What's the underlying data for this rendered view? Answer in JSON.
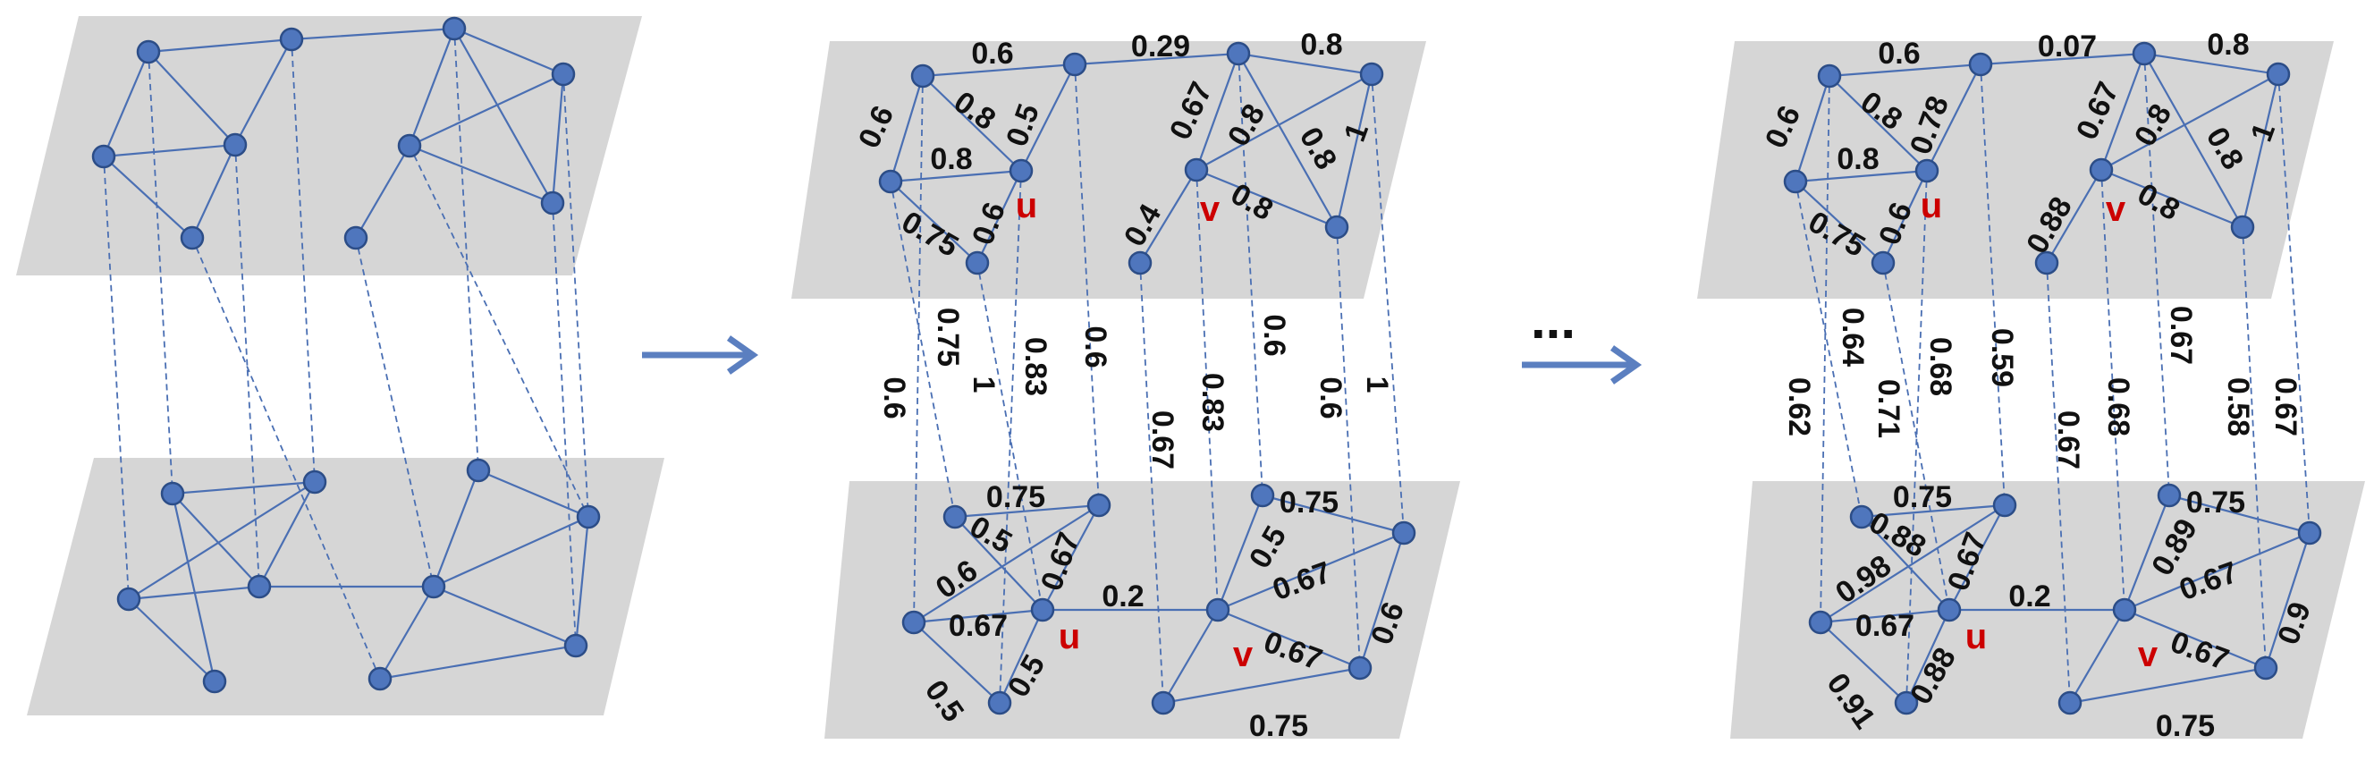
{
  "colors": {
    "plane": "#d6d6d6",
    "edge": "#4a6fb3",
    "node_fill": "#4f76bd",
    "node_stroke": "#2c4d87",
    "weight_text": "#111111",
    "vertex_label": "#cc0000",
    "arrow": "#5b7fc0"
  },
  "vertex_labels": {
    "u": "u",
    "v": "v"
  },
  "ellipsis": "...",
  "panel2": {
    "top_weights": [
      "0.6",
      "0.29",
      "0.8",
      "0.6",
      "0.8",
      "0.5",
      "0.67",
      "0.8",
      "0.8",
      "1",
      "0.8",
      "0.75",
      "0.6",
      "0.4",
      "0.8"
    ],
    "inter_weights": [
      "0.6",
      "0.75",
      "1",
      "0.83",
      "0.6",
      "0.67",
      "0.83",
      "0.6",
      "0.6",
      "1"
    ],
    "bottom_weights": [
      "0.75",
      "0.5",
      "0.67",
      "0.6",
      "0.67",
      "0.2",
      "0.5",
      "0.67",
      "0.75",
      "0.5",
      "0.5",
      "0.67",
      "0.6",
      "0.75"
    ]
  },
  "panel3": {
    "top_weights": [
      "0.6",
      "0.07",
      "0.8",
      "0.6",
      "0.8",
      "0.78",
      "0.67",
      "0.8",
      "0.8",
      "1",
      "0.8",
      "0.75",
      "0.6",
      "0.88",
      "0.8"
    ],
    "inter_weights": [
      "0.62",
      "0.64",
      "0.71",
      "0.68",
      "0.59",
      "0.67",
      "0.68",
      "0.67",
      "0.58",
      "0.67"
    ],
    "bottom_weights": [
      "0.75",
      "0.88",
      "0.67",
      "0.98",
      "0.67",
      "0.2",
      "0.89",
      "0.67",
      "0.75",
      "0.91",
      "0.88",
      "0.67",
      "0.9",
      "0.75"
    ]
  }
}
